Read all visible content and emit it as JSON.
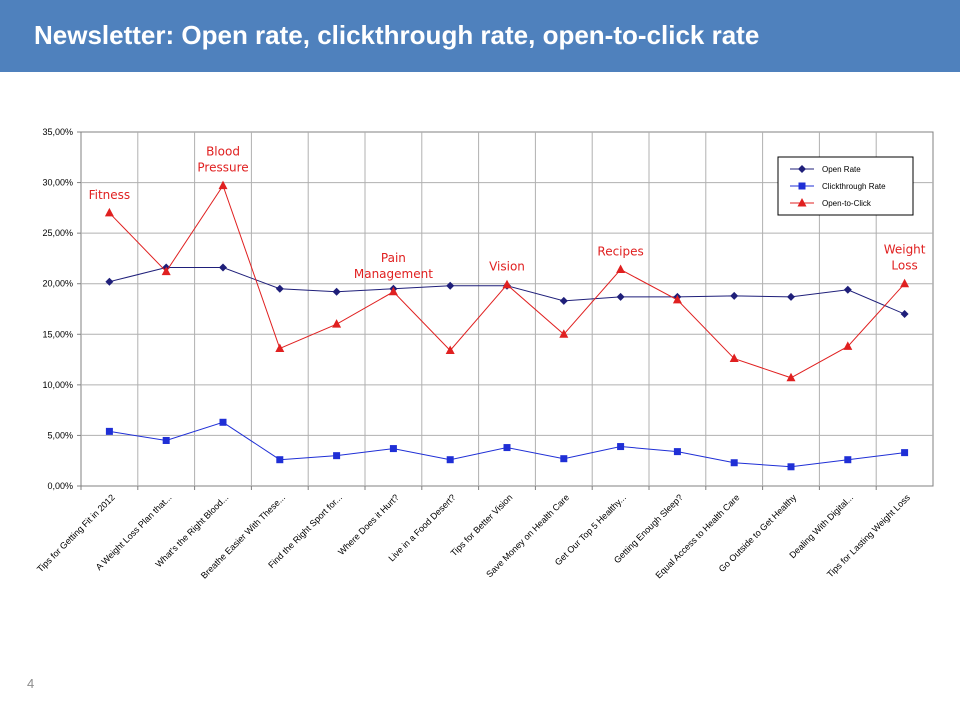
{
  "slide": {
    "title": "Newsletter: Open rate, clickthrough rate, open-to-click rate",
    "page_number": "4"
  },
  "colors": {
    "header": "#4f81bd",
    "open_rate": "#1f1f7a",
    "clickthrough": "#1f2fd6",
    "open_to_click": "#e02020"
  },
  "chart_data": {
    "type": "line",
    "categories": [
      "Tips for Getting Fit in 2012",
      "A Weight Loss Plan that...",
      "What's the Right Blood...",
      "Breathe Easier With These...",
      "Find the Right Sport for...",
      "Where Does it Hurt?",
      "Live in a Food Desert?",
      "Tips for Better Vision",
      "Save Money on Health Care",
      "Get Our Top 5 Healthy...",
      "Getting Enough Sleep?",
      "Equal Access to Health Care",
      "Go Outside to Get Healthy",
      "Dealing With Digital...",
      "Tips for Lasting Weight Loss"
    ],
    "series": [
      {
        "name": "Open Rate",
        "marker": "diamond",
        "color": "#1f1f7a",
        "values": [
          20.2,
          21.6,
          21.6,
          19.5,
          19.2,
          19.5,
          19.8,
          19.8,
          18.3,
          18.7,
          18.7,
          18.8,
          18.7,
          19.4,
          17.0
        ]
      },
      {
        "name": "Clickthrough Rate",
        "marker": "square",
        "color": "#1f2fd6",
        "values": [
          5.4,
          4.5,
          6.3,
          2.6,
          3.0,
          3.7,
          2.6,
          3.8,
          2.7,
          3.9,
          3.4,
          2.3,
          1.9,
          2.6,
          3.3
        ]
      },
      {
        "name": "Open-to-Click",
        "marker": "triangle",
        "color": "#e02020",
        "values": [
          27.0,
          21.2,
          29.7,
          13.6,
          16.0,
          19.2,
          13.4,
          19.9,
          15.0,
          21.4,
          18.4,
          12.6,
          10.7,
          13.8,
          20.0
        ]
      }
    ],
    "ylim": [
      0,
      35
    ],
    "yticks": [
      "0,00%",
      "5,00%",
      "10,00%",
      "15,00%",
      "20,00%",
      "25,00%",
      "30,00%",
      "35,00%"
    ],
    "grid": true,
    "legend_position": "top-right",
    "annotations": [
      {
        "index": 0,
        "lines": [
          "Fitness"
        ]
      },
      {
        "index": 2,
        "lines": [
          "Blood",
          "Pressure"
        ]
      },
      {
        "index": 5,
        "lines": [
          "Pain",
          "Management"
        ]
      },
      {
        "index": 7,
        "lines": [
          "Vision"
        ]
      },
      {
        "index": 9,
        "lines": [
          "Recipes"
        ]
      },
      {
        "index": 14,
        "lines": [
          "Weight",
          "Loss"
        ]
      }
    ]
  }
}
